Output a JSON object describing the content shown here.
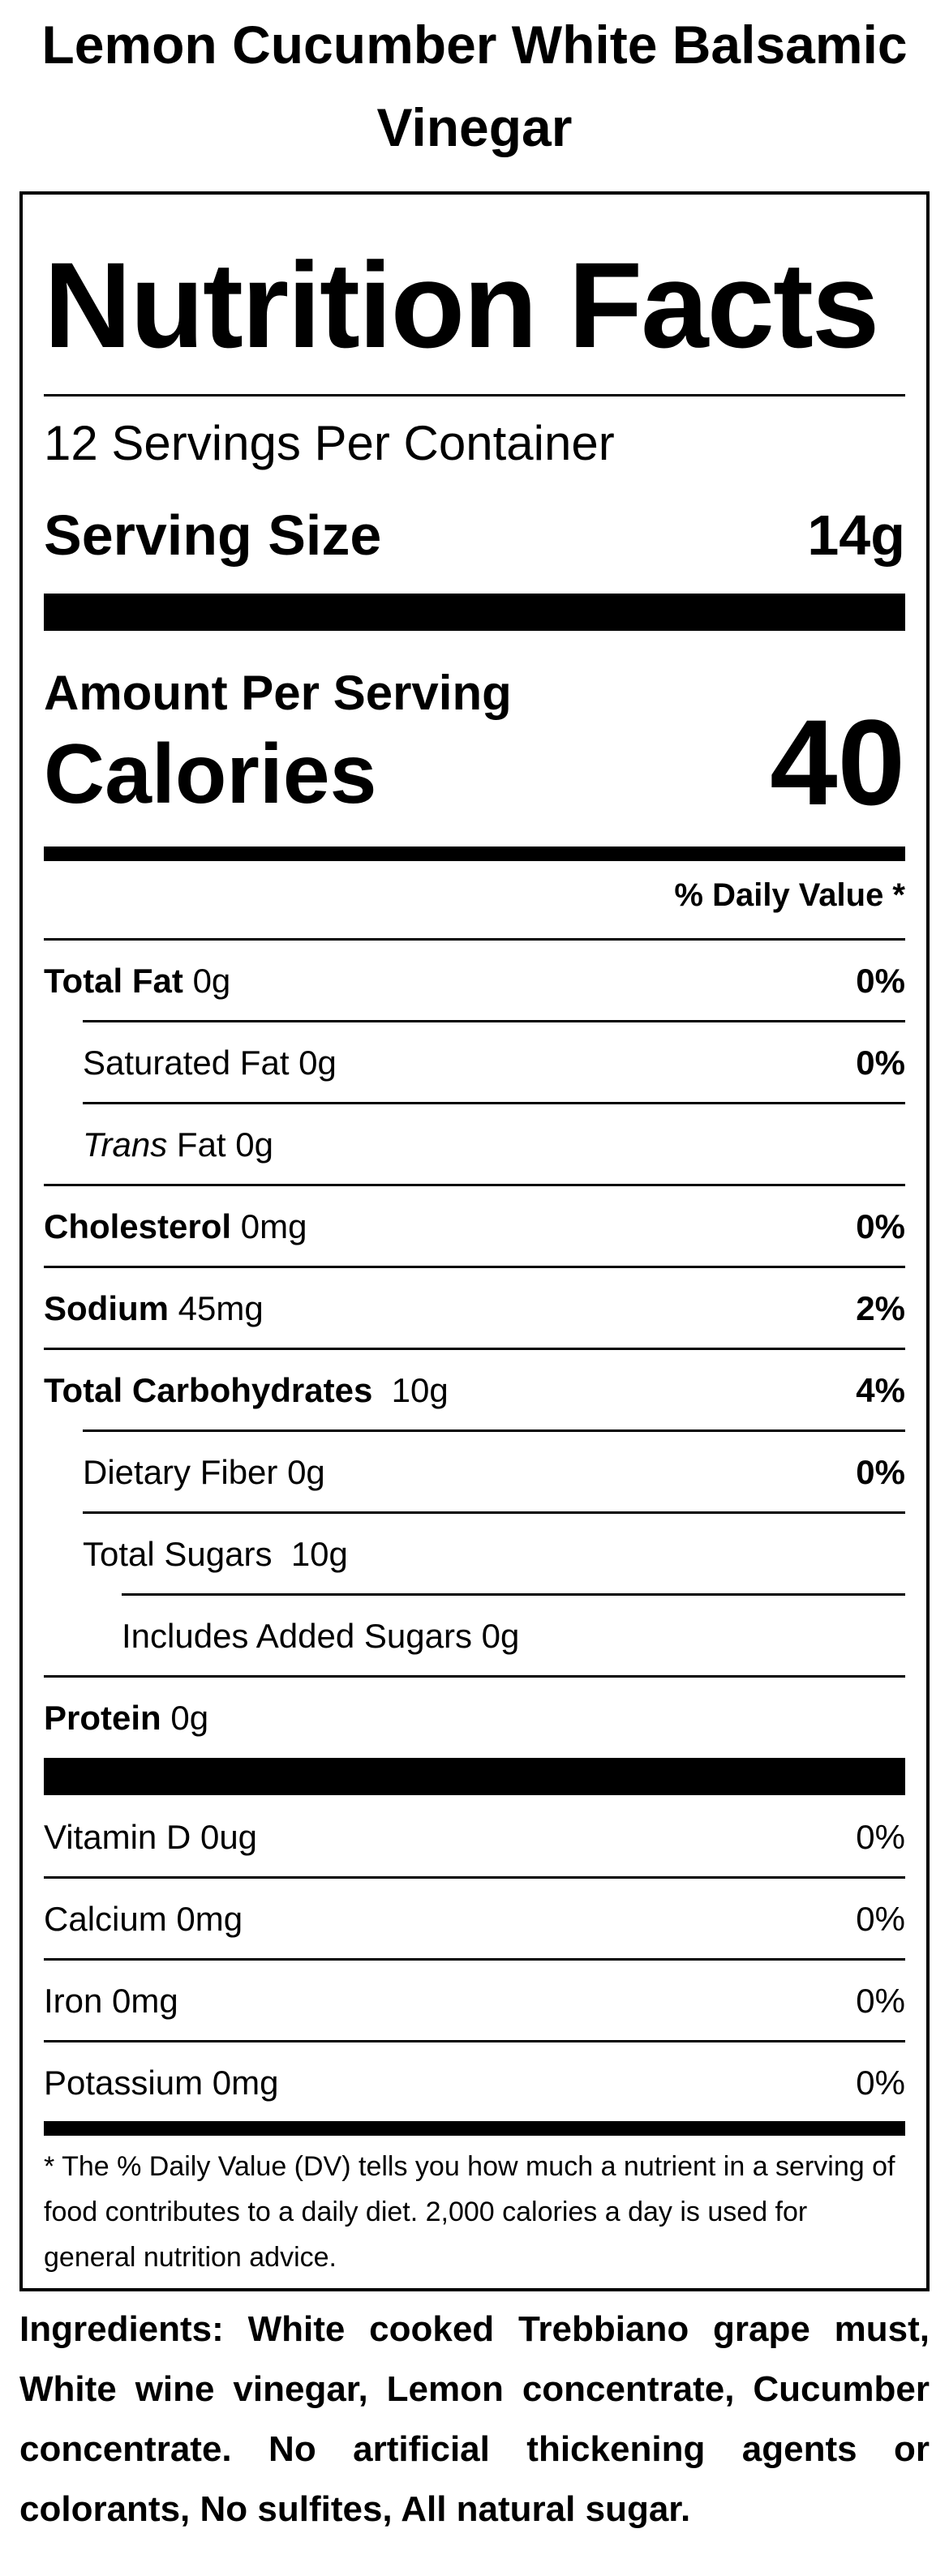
{
  "product": {
    "title": "Lemon Cucumber White Balsamic Vinegar"
  },
  "label": {
    "heading": "Nutrition Facts",
    "servings_per_container": "12 Servings Per Container",
    "serving_size_label": "Serving Size",
    "serving_size_value": "14g",
    "amount_per_serving": "Amount Per Serving",
    "calories_label": "Calories",
    "calories_value": "40",
    "daily_value_header": "% Daily Value *",
    "nutrients": [
      {
        "name": "Total Fat",
        "amount": "0g",
        "dv": "0%"
      },
      {
        "name": "Saturated Fat",
        "amount": "0g",
        "dv": "0%"
      },
      {
        "name": "Trans",
        "name_suffix": "Fat",
        "amount": "0g",
        "dv": ""
      },
      {
        "name": "Cholesterol",
        "amount": "0mg",
        "dv": "0%"
      },
      {
        "name": "Sodium",
        "amount": "45mg",
        "dv": "2%"
      },
      {
        "name": "Total Carbohydrates",
        "amount": "10g",
        "dv": "4%"
      },
      {
        "name": "Dietary Fiber",
        "amount": "0g",
        "dv": "0%"
      },
      {
        "name": "Total Sugars",
        "amount": "10g",
        "dv": ""
      },
      {
        "name": "Includes Added Sugars",
        "amount": "0g",
        "dv": ""
      },
      {
        "name": "Protein",
        "amount": "0g",
        "dv": ""
      }
    ],
    "vitamins": [
      {
        "name": "Vitamin D",
        "amount": "0ug",
        "dv": "0%"
      },
      {
        "name": "Calcium",
        "amount": "0mg",
        "dv": "0%"
      },
      {
        "name": "Iron",
        "amount": "0mg",
        "dv": "0%"
      },
      {
        "name": "Potassium",
        "amount": "0mg",
        "dv": "0%"
      }
    ],
    "footnote": "* The % Daily Value (DV) tells you how much a nutrient in a serving of food contributes to a daily diet. 2,000 calories a day is used for general nutrition advice."
  },
  "ingredients": {
    "label": "Ingredients:",
    "text": "White cooked Trebbiano grape must, White wine vinegar, Lemon concentrate, Cucumber concentrate. No artificial thickening agents or colorants, No sulfites, All natural sugar."
  }
}
